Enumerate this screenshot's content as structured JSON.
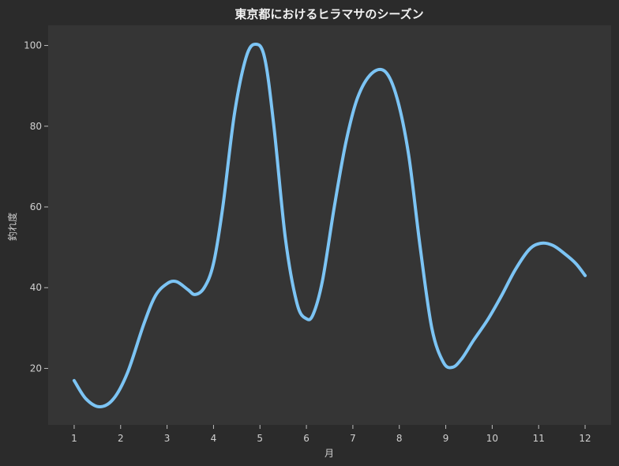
{
  "chart_data": {
    "type": "line",
    "title": "東京都におけるヒラマサのシーズン",
    "xlabel": "月",
    "ylabel": "釣れ度",
    "x_ticks": [
      "1",
      "2",
      "3",
      "4",
      "5",
      "6",
      "7",
      "8",
      "9",
      "10",
      "11",
      "12"
    ],
    "y_ticks": [
      "20",
      "40",
      "60",
      "80",
      "100"
    ],
    "xlim": [
      0.44,
      12.56
    ],
    "ylim": [
      6,
      105
    ],
    "grid": false,
    "line_color": "#7cc4f4",
    "series": [
      {
        "x": [
          1.0,
          1.25,
          1.55,
          1.85,
          2.15,
          2.5,
          2.75,
          3.0,
          3.2,
          3.45,
          3.6,
          3.8,
          4.0,
          4.2,
          4.45,
          4.7,
          4.9,
          5.1,
          5.3,
          5.55,
          5.8,
          6.0,
          6.15,
          6.35,
          6.6,
          6.85,
          7.1,
          7.4,
          7.7,
          7.95,
          8.2,
          8.45,
          8.7,
          8.95,
          9.15,
          9.35,
          9.6,
          9.9,
          10.2,
          10.5,
          10.8,
          11.05,
          11.3,
          11.55,
          11.8,
          12.0
        ],
        "y": [
          17,
          12.5,
          10.5,
          12.5,
          19,
          31,
          38,
          41,
          41.5,
          39.5,
          38.3,
          40,
          46,
          60,
          83,
          97,
          100.3,
          97,
          80,
          52,
          36,
          32.3,
          33.5,
          42,
          60,
          76,
          87,
          93,
          93.5,
          87,
          73,
          50,
          30,
          21.5,
          20.3,
          22.5,
          27,
          32,
          38,
          44.5,
          49.5,
          51,
          50.5,
          48.5,
          46,
          43
        ]
      }
    ]
  }
}
